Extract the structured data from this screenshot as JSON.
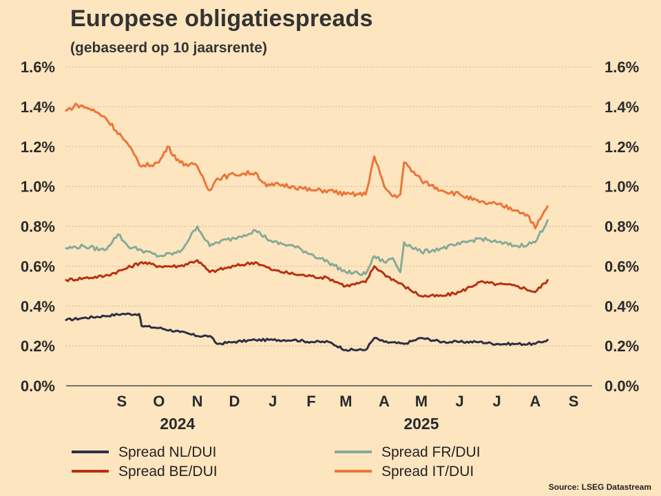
{
  "title": "Europese obligatiespreads",
  "subtitle": "(gebaseerd op 10 jaarsrente)",
  "source": "Source: LSEG Datastream",
  "colors": {
    "background": "#fde5c0",
    "grid": "#b8a58a",
    "NL": "#2e2d45",
    "BE": "#b8300e",
    "FR": "#86ab98",
    "IT": "#ec7436"
  },
  "chart_data": {
    "type": "line",
    "title": "Europese obligatiespreads",
    "subtitle": "(gebaseerd op 10 jaarsrente)",
    "ylim": [
      0.0,
      1.6
    ],
    "y_ticks": [
      "0.0%",
      "0.2%",
      "0.4%",
      "0.6%",
      "0.8%",
      "1.0%",
      "1.2%",
      "1.4%",
      "1.6%"
    ],
    "y_tick_values": [
      0.0,
      0.2,
      0.4,
      0.6,
      0.8,
      1.0,
      1.2,
      1.4,
      1.6
    ],
    "x_range": [
      "2024-08-01",
      "2025-09-30"
    ],
    "x_month_labels": [
      "S",
      "O",
      "N",
      "D",
      "J",
      "F",
      "M",
      "A",
      "M",
      "J",
      "J",
      "A",
      "S"
    ],
    "x_month_dates": [
      "2024-09-15",
      "2024-10-15",
      "2024-11-15",
      "2024-12-15",
      "2025-01-15",
      "2025-02-15",
      "2025-03-15",
      "2025-04-15",
      "2025-05-15",
      "2025-06-15",
      "2025-07-15",
      "2025-08-15",
      "2025-09-15"
    ],
    "x_year_labels": [
      "2024",
      "2025"
    ],
    "x_year_dates": [
      "2024-10-30",
      "2025-05-15"
    ],
    "grid": true,
    "series": [
      {
        "name": "Spread NL/DUI",
        "color": "#2e2d45",
        "x": [
          "2024-08-01",
          "2024-08-15",
          "2024-09-01",
          "2024-09-15",
          "2024-09-29",
          "2024-10-01",
          "2024-10-15",
          "2024-11-01",
          "2024-11-15",
          "2024-11-25",
          "2024-12-01",
          "2024-12-15",
          "2025-01-01",
          "2025-01-15",
          "2025-02-01",
          "2025-02-15",
          "2025-03-01",
          "2025-03-15",
          "2025-03-31",
          "2025-04-07",
          "2025-04-15",
          "2025-05-01",
          "2025-05-15",
          "2025-06-01",
          "2025-06-15",
          "2025-07-01",
          "2025-07-15",
          "2025-08-01",
          "2025-08-15",
          "2025-08-25"
        ],
        "y": [
          0.33,
          0.34,
          0.35,
          0.36,
          0.36,
          0.3,
          0.29,
          0.27,
          0.25,
          0.25,
          0.21,
          0.22,
          0.23,
          0.23,
          0.23,
          0.22,
          0.22,
          0.18,
          0.18,
          0.24,
          0.22,
          0.21,
          0.24,
          0.22,
          0.22,
          0.22,
          0.21,
          0.21,
          0.21,
          0.23
        ]
      },
      {
        "name": "Spread BE/DUI",
        "color": "#b8300e",
        "x": [
          "2024-08-01",
          "2024-08-15",
          "2024-09-01",
          "2024-09-15",
          "2024-10-01",
          "2024-10-15",
          "2024-11-01",
          "2024-11-15",
          "2024-11-25",
          "2024-12-01",
          "2024-12-15",
          "2025-01-01",
          "2025-01-15",
          "2025-02-01",
          "2025-02-15",
          "2025-03-01",
          "2025-03-15",
          "2025-03-31",
          "2025-04-07",
          "2025-04-15",
          "2025-05-01",
          "2025-05-15",
          "2025-06-01",
          "2025-06-15",
          "2025-07-01",
          "2025-07-15",
          "2025-08-01",
          "2025-08-15",
          "2025-08-25"
        ],
        "y": [
          0.53,
          0.54,
          0.55,
          0.58,
          0.62,
          0.6,
          0.6,
          0.63,
          0.57,
          0.58,
          0.6,
          0.62,
          0.58,
          0.56,
          0.55,
          0.54,
          0.5,
          0.52,
          0.6,
          0.56,
          0.5,
          0.45,
          0.45,
          0.47,
          0.52,
          0.51,
          0.5,
          0.47,
          0.53
        ]
      },
      {
        "name": "Spread FR/DUI",
        "color": "#86ab98",
        "x": [
          "2024-08-01",
          "2024-08-15",
          "2024-09-01",
          "2024-09-12",
          "2024-09-20",
          "2024-10-01",
          "2024-10-15",
          "2024-11-01",
          "2024-11-15",
          "2024-11-25",
          "2024-12-01",
          "2024-12-15",
          "2025-01-01",
          "2025-01-15",
          "2025-02-01",
          "2025-02-15",
          "2025-03-01",
          "2025-03-15",
          "2025-03-31",
          "2025-04-07",
          "2025-04-15",
          "2025-04-22",
          "2025-04-28",
          "2025-05-01",
          "2025-05-15",
          "2025-06-01",
          "2025-06-15",
          "2025-07-01",
          "2025-07-15",
          "2025-08-01",
          "2025-08-15",
          "2025-08-25"
        ],
        "y": [
          0.69,
          0.7,
          0.68,
          0.76,
          0.7,
          0.68,
          0.65,
          0.67,
          0.8,
          0.7,
          0.72,
          0.74,
          0.78,
          0.72,
          0.7,
          0.66,
          0.62,
          0.57,
          0.56,
          0.65,
          0.62,
          0.64,
          0.57,
          0.72,
          0.67,
          0.69,
          0.71,
          0.74,
          0.72,
          0.7,
          0.72,
          0.83
        ]
      },
      {
        "name": "Spread  IT/DUI",
        "color": "#ec7436",
        "x": [
          "2024-08-01",
          "2024-08-10",
          "2024-08-20",
          "2024-09-01",
          "2024-09-15",
          "2024-09-25",
          "2024-10-01",
          "2024-10-15",
          "2024-10-22",
          "2024-11-01",
          "2024-11-15",
          "2024-11-25",
          "2024-12-01",
          "2024-12-15",
          "2025-01-01",
          "2025-01-10",
          "2025-01-20",
          "2025-02-01",
          "2025-02-15",
          "2025-03-01",
          "2025-03-15",
          "2025-03-31",
          "2025-04-07",
          "2025-04-15",
          "2025-04-22",
          "2025-04-28",
          "2025-05-01",
          "2025-05-15",
          "2025-06-01",
          "2025-06-15",
          "2025-07-01",
          "2025-07-15",
          "2025-08-01",
          "2025-08-10",
          "2025-08-15",
          "2025-08-25"
        ],
        "y": [
          1.38,
          1.41,
          1.39,
          1.35,
          1.25,
          1.16,
          1.1,
          1.12,
          1.2,
          1.12,
          1.1,
          0.98,
          1.04,
          1.06,
          1.07,
          1.0,
          1.01,
          1.0,
          0.98,
          0.98,
          0.96,
          0.96,
          1.15,
          1.0,
          0.95,
          0.96,
          1.12,
          1.03,
          0.98,
          0.96,
          0.92,
          0.91,
          0.88,
          0.85,
          0.79,
          0.9
        ]
      }
    ]
  },
  "legend": [
    {
      "label": "Spread NL/DUI",
      "color": "#2e2d45"
    },
    {
      "label": "Spread FR/DUI",
      "color": "#86ab98"
    },
    {
      "label": "Spread BE/DUI",
      "color": "#b8300e"
    },
    {
      "label": "Spread  IT/DUI",
      "color": "#ec7436"
    }
  ]
}
